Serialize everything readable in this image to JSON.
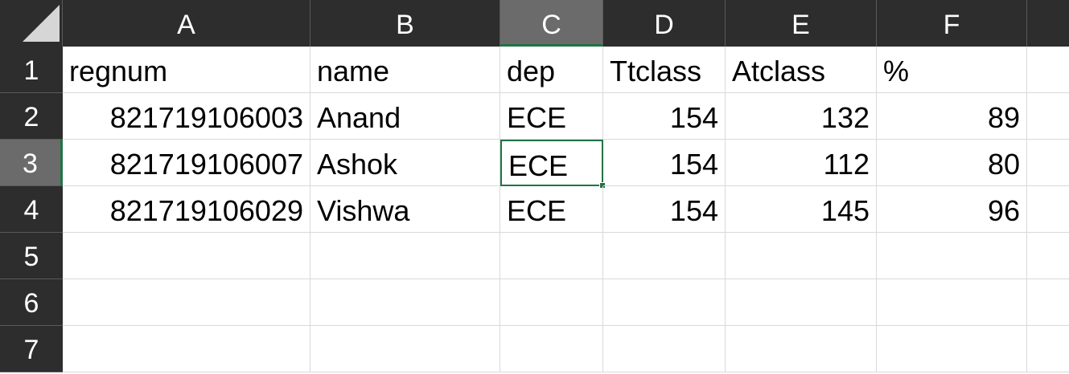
{
  "columns": [
    "A",
    "B",
    "C",
    "D",
    "E",
    "F"
  ],
  "row_numbers": [
    "1",
    "2",
    "3",
    "4",
    "5",
    "6",
    "7"
  ],
  "rows": [
    [
      "regnum",
      "name",
      "dep",
      "Ttclass",
      "Atclass",
      "%"
    ],
    [
      "821719106003",
      "Anand",
      "ECE",
      "154",
      "132",
      "89"
    ],
    [
      "821719106007",
      "Ashok",
      "ECE",
      "154",
      "112",
      "80"
    ],
    [
      "821719106029",
      "Vishwa",
      "ECE",
      "154",
      "145",
      "96"
    ],
    [
      "",
      "",
      "",
      "",
      "",
      ""
    ],
    [
      "",
      "",
      "",
      "",
      "",
      ""
    ],
    [
      "",
      "",
      "",
      "",
      "",
      ""
    ]
  ],
  "selection": {
    "active_cell": "C3",
    "active_column": "C",
    "active_row": "3"
  },
  "colors": {
    "header_bg": "#2d2d2d",
    "selected_header_bg": "#6b6b6b",
    "accent": "#217346",
    "gridline": "#d9d9d9"
  },
  "icons": {
    "corner": "select-all-triangle-icon"
  }
}
